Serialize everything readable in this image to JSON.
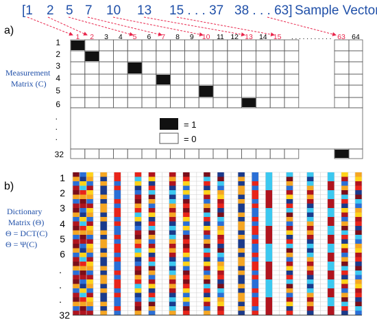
{
  "colors": {
    "text_blue": "#1f4fa8",
    "highlight_red": "#e8244a",
    "filled_cell": "#111111",
    "dict_palette": [
      "#1a3a8c",
      "#2a6fd6",
      "#3cc8f0",
      "#ffd21a",
      "#f5a623",
      "#e8241a",
      "#b0141e",
      "#7a0e1a"
    ]
  },
  "sample_vector": {
    "open_bracket": "[1",
    "items": [
      "2",
      "5",
      "7",
      "10",
      "13",
      "15 . . . 37",
      "38 . . . 63]"
    ],
    "title": "Sample Vector"
  },
  "panel_a": {
    "label": "a)",
    "side_label_line1": "Measurement",
    "side_label_line2": "Matrix (C)",
    "column_numbers": [
      "1",
      "2",
      "3",
      "4",
      "5",
      "6",
      "7",
      "8",
      "9",
      "10",
      "11",
      "12",
      "13",
      "14",
      "15"
    ],
    "column_numbers_highlighted": [
      "1",
      "2",
      "5",
      "7",
      "10",
      "13",
      "15"
    ],
    "column_ellipsis": ". . . . . . . . . . .",
    "last_columns": [
      "63",
      "64"
    ],
    "row_numbers": [
      "1",
      "2",
      "3",
      "4",
      "5",
      "6"
    ],
    "row_dots": [
      ".",
      ".",
      "."
    ],
    "last_row": "32",
    "selected_columns_per_row": [
      1,
      2,
      5,
      7,
      10,
      13
    ],
    "last_row_selected_column": 63,
    "legend": {
      "filled_label": "= 1",
      "empty_label": "= 0"
    }
  },
  "panel_b": {
    "label": "b)",
    "side_label_line1": "Dictionary",
    "side_label_line2": "Matrix (Θ)",
    "side_label_line3": "Θ = DCT(C)",
    "side_label_line4": "Θ = Ψ(C)",
    "row_numbers": [
      "1",
      "2",
      "3",
      "4",
      "5",
      "6"
    ],
    "row_dots": [
      ".",
      ".",
      "."
    ],
    "last_row": "32",
    "colored_columns": [
      1,
      2,
      3,
      5,
      7,
      10,
      12,
      15,
      17,
      20,
      22,
      25,
      27,
      29,
      32,
      35,
      38,
      40,
      42
    ],
    "grid_columns": 42,
    "grid_rows": 32
  }
}
